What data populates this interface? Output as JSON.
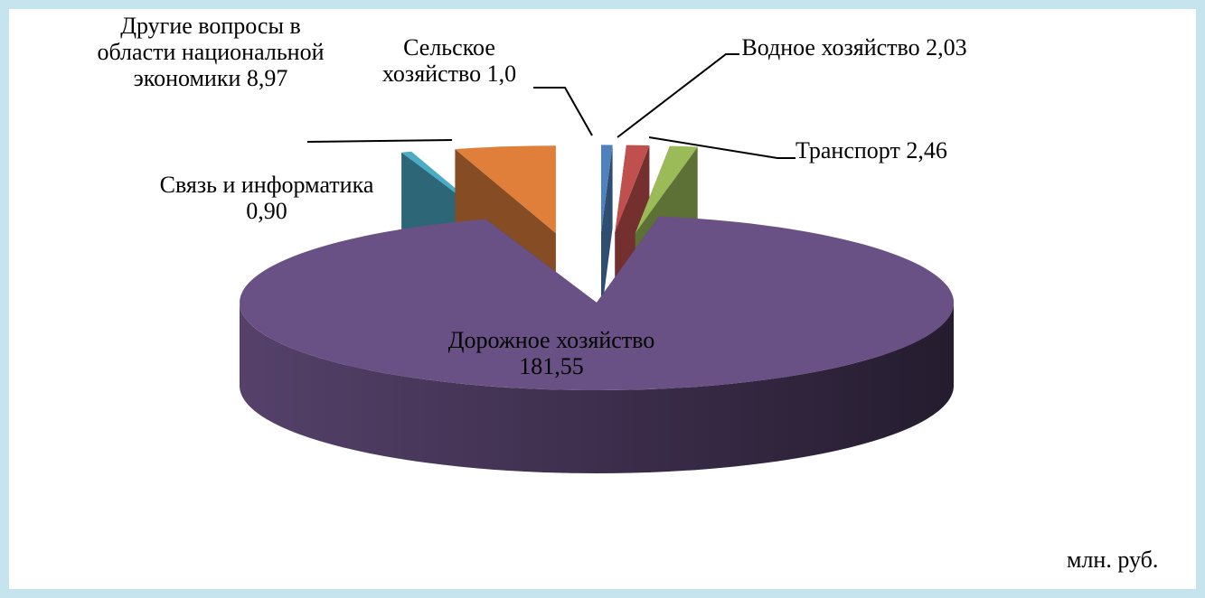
{
  "chart_data": {
    "type": "pie",
    "categories": [
      "Сельское хозяйство",
      "Водное хозяйство",
      "Транспорт",
      "Дорожное хозяйство",
      "Связь и информатика",
      "Другие вопросы в области национальной экономики"
    ],
    "values": [
      1.0,
      2.03,
      2.46,
      181.55,
      0.9,
      8.97
    ],
    "value_labels": [
      "1,0",
      "2,03",
      "2,46",
      "181,55",
      "0,90",
      "8,97"
    ],
    "colors": [
      "#4f81bd",
      "#c0504d",
      "#9bbb59",
      "#6a5185",
      "#4bacc6",
      "#e07f3a"
    ],
    "unit": "млн. руб."
  }
}
